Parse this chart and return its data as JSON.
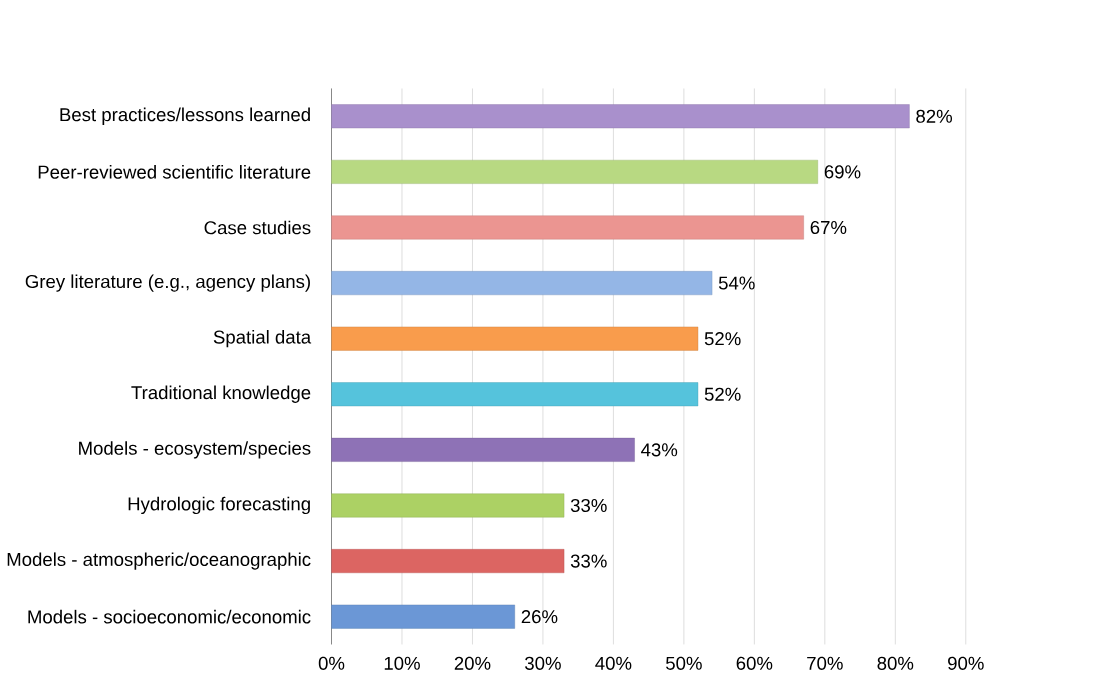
{
  "chart_data": {
    "type": "bar",
    "orientation": "horizontal",
    "categories": [
      "Best practices/lessons learned",
      "Peer-reviewed scientific literature",
      "Case studies",
      "Grey literature (e.g., agency plans)",
      "Spatial data",
      "Traditional knowledge",
      "Models - ecosystem/species",
      "Hydrologic forecasting",
      "Models - atmospheric/oceanographic",
      "Models - socioeconomic/economic"
    ],
    "values": [
      82,
      69,
      67,
      54,
      52,
      52,
      43,
      33,
      33,
      26
    ],
    "value_labels": [
      "82%",
      "69%",
      "67%",
      "54%",
      "52%",
      "52%",
      "43%",
      "33%",
      "33%",
      "26%"
    ],
    "colors": [
      "#a990cc",
      "#b8d982",
      "#eb9591",
      "#94b6e6",
      "#f99c4c",
      "#55c3dc",
      "#8e72b6",
      "#acd164",
      "#dc6562",
      "#6b97d6"
    ],
    "xlim": [
      0,
      90
    ],
    "xticks": [
      {
        "value": 0,
        "label": "0%"
      },
      {
        "value": 10,
        "label": "10%"
      },
      {
        "value": 20,
        "label": "20%"
      },
      {
        "value": 30,
        "label": "30%"
      },
      {
        "value": 40,
        "label": "40%"
      },
      {
        "value": 50,
        "label": "50%"
      },
      {
        "value": 60,
        "label": "60%"
      },
      {
        "value": 70,
        "label": "70%"
      },
      {
        "value": 80,
        "label": "80%"
      },
      {
        "value": 90,
        "label": "90%"
      }
    ],
    "grid": "x"
  }
}
